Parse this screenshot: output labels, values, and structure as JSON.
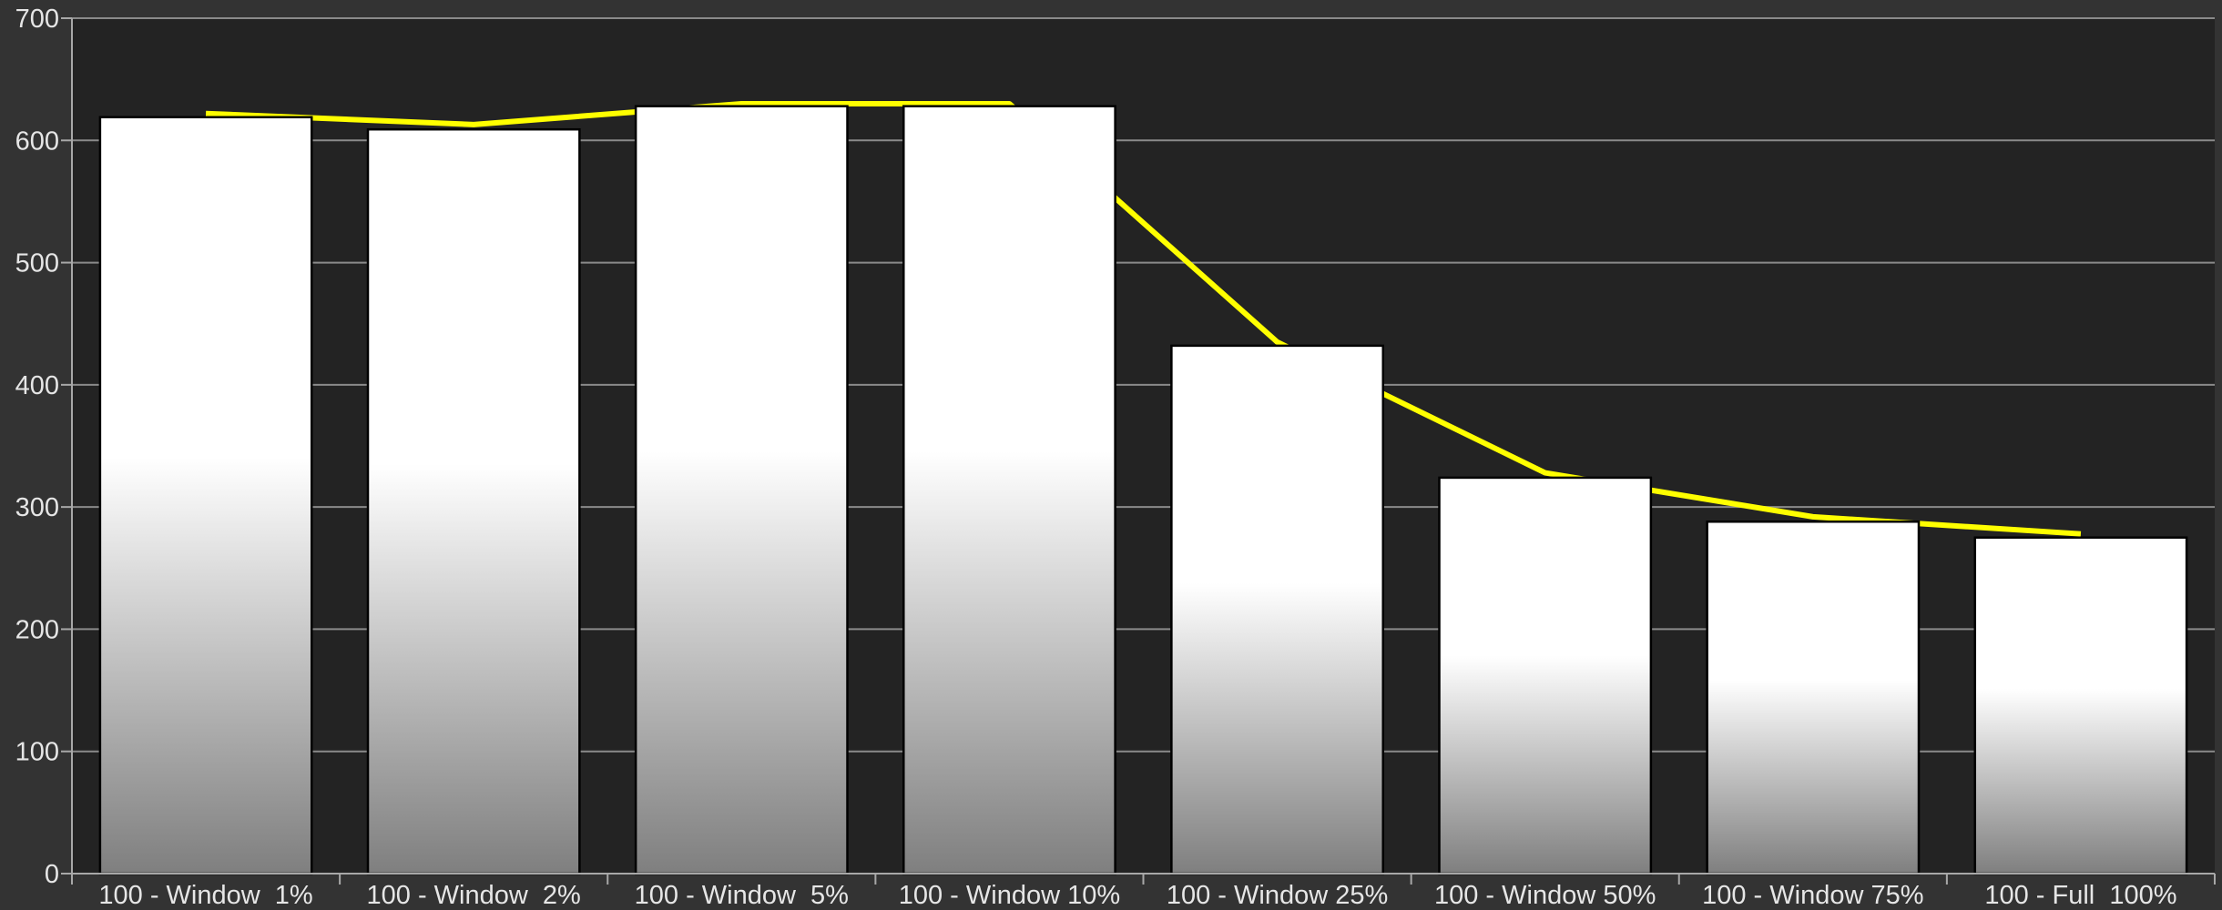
{
  "chart_data": {
    "type": "bar",
    "title": "",
    "xlabel": "",
    "ylabel": "",
    "ylim": [
      0,
      700
    ],
    "yticks": [
      0,
      100,
      200,
      300,
      400,
      500,
      600,
      700
    ],
    "grid": true,
    "categories": [
      "100 - Window  1%",
      "100 - Window  2%",
      "100 - Window  5%",
      "100 - Window 10%",
      "100 - Window 25%",
      "100 - Window 50%",
      "100 - Window 75%",
      "100 - Full  100%"
    ],
    "series": [
      {
        "kind": "bar",
        "values": [
          619,
          609,
          628,
          628,
          432,
          324,
          288,
          275
        ]
      },
      {
        "kind": "line",
        "values": [
          622,
          613,
          630,
          630,
          435,
          328,
          292,
          278
        ]
      }
    ],
    "colors": {
      "background": "#333333",
      "plot_background": "#232323",
      "grid": "#8a8a8a",
      "axis": "#a8a8a8",
      "text": "#e6e6e6",
      "bar_top": "#ffffff",
      "bar_bottom": "#7f7f7f",
      "bar_outline": "#000000",
      "line": "#ffff00"
    }
  }
}
